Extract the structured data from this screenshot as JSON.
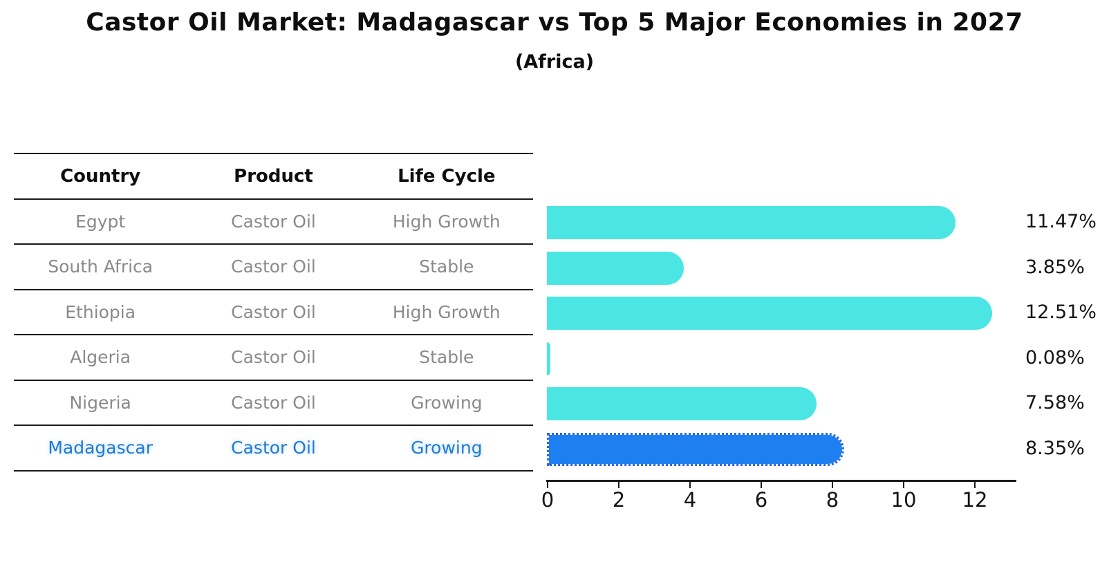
{
  "title": "Castor Oil Market: Madagascar vs Top 5 Major Economies in 2027",
  "subtitle": "(Africa)",
  "table": {
    "headers": [
      "Country",
      "Product",
      "Life Cycle"
    ],
    "rows": [
      {
        "country": "Egypt",
        "product": "Castor Oil",
        "life_cycle": "High Growth",
        "highlighted": false
      },
      {
        "country": "South Africa",
        "product": "Castor Oil",
        "life_cycle": "Stable",
        "highlighted": false
      },
      {
        "country": "Ethiopia",
        "product": "Castor Oil",
        "life_cycle": "High Growth",
        "highlighted": false
      },
      {
        "country": "Algeria",
        "product": "Castor Oil",
        "life_cycle": "Stable",
        "highlighted": false
      },
      {
        "country": "Nigeria",
        "product": "Castor Oil",
        "life_cycle": "Growing",
        "highlighted": false
      },
      {
        "country": "Madagascar",
        "product": "Castor Oil",
        "life_cycle": "Growing",
        "highlighted": true
      }
    ]
  },
  "chart_data": {
    "type": "bar",
    "orientation": "horizontal",
    "title": "Castor Oil Market: Madagascar vs Top 5 Major Economies in 2027",
    "subtitle": "(Africa)",
    "categories": [
      "Egypt",
      "South Africa",
      "Ethiopia",
      "Algeria",
      "Nigeria",
      "Madagascar"
    ],
    "values": [
      11.47,
      3.85,
      12.51,
      0.08,
      7.58,
      8.35
    ],
    "value_labels": [
      "11.47%",
      "3.85%",
      "12.51%",
      "0.08%",
      "7.58%",
      "8.35%"
    ],
    "xlabel": "",
    "ylabel": "",
    "xticks": [
      0,
      2,
      4,
      6,
      8,
      10,
      12
    ],
    "xlim": [
      0,
      13.2
    ],
    "grid": false,
    "legend": false,
    "bar_color": "#4be6e3",
    "highlight_color": "#1e80f0",
    "highlight_index": 5,
    "highlight_text_color": "#1e7ad6",
    "axis_color": "#1a1a1a",
    "label_color": "#141414",
    "muted_text_color": "#8a8a8a"
  }
}
